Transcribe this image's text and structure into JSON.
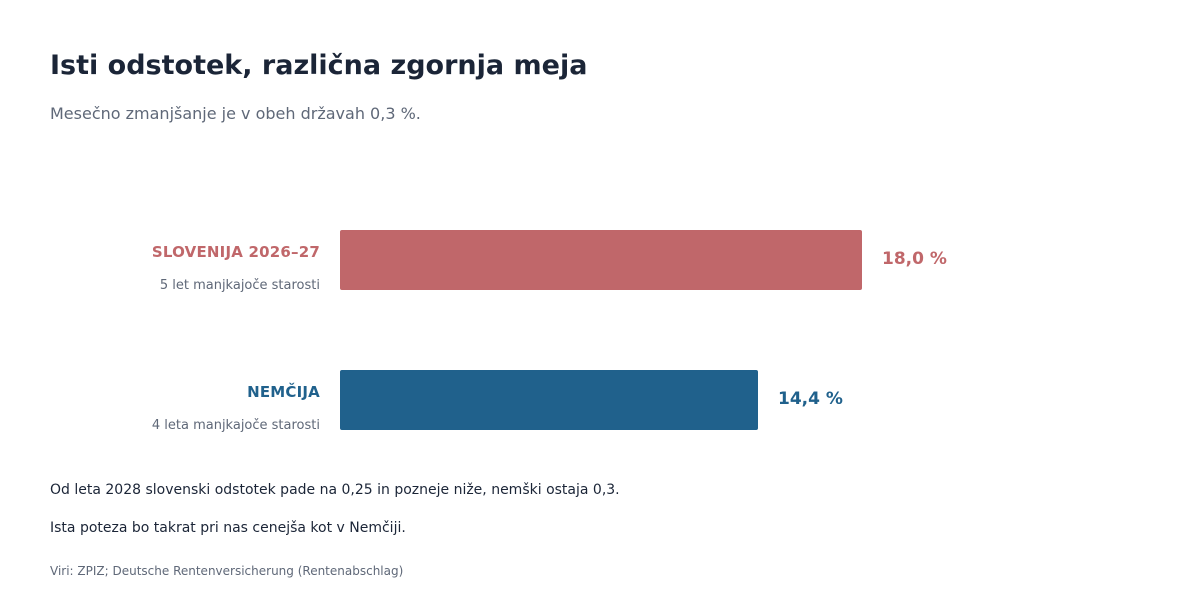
{
  "title": "Isti odstotek, različna zgornja meja",
  "subtitle": "Mesečno zmanjšanje je v obeh državah 0,3 %.",
  "chart_data": {
    "type": "bar",
    "orientation": "horizontal",
    "categories": [
      "SLOVENIJA 2026–27",
      "NEMČIJA"
    ],
    "category_notes": [
      "5 let manjkajoče starosti",
      "4 leta manjkajoče starosti"
    ],
    "values": [
      18.0,
      14.4
    ],
    "value_labels": [
      "18,0 %",
      "14,4 %"
    ],
    "colors": [
      "#c0676a",
      "#20618c"
    ],
    "grid": false,
    "legend": "none"
  },
  "notes": [
    "Od leta 2028 slovenski odstotek pade na 0,25 in pozneje niže, nemški ostaja 0,3.",
    "Ista poteza bo takrat pri nas cenejša kot v Nemčiji."
  ],
  "source": "Viri: ZPIZ; Deutsche Rentenversicherung (Rentenabschlag)"
}
